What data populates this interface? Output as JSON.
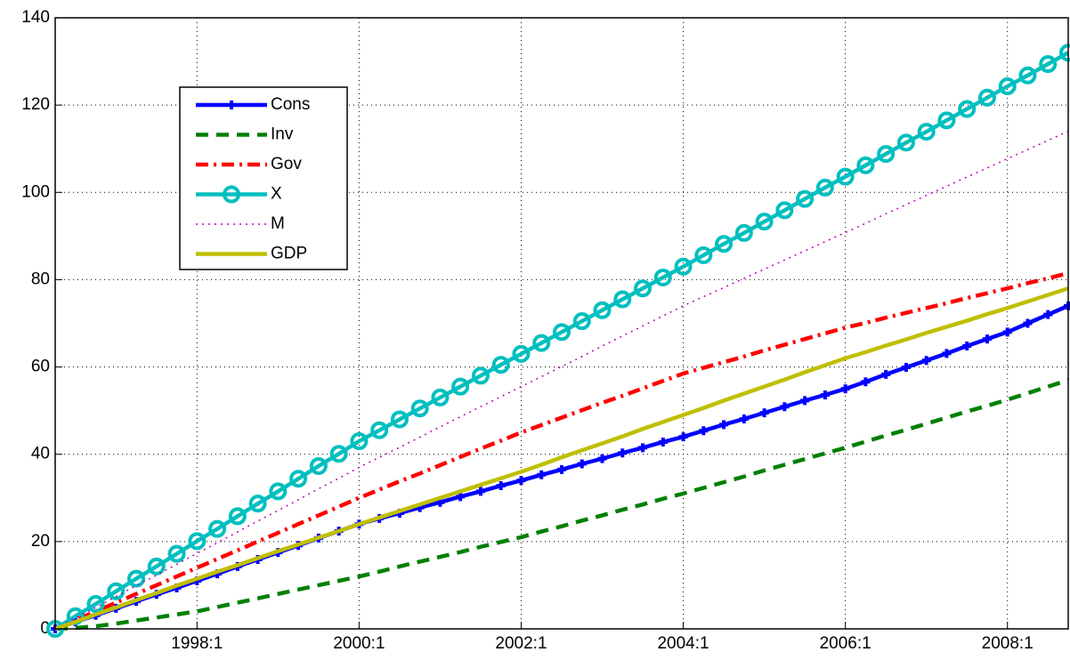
{
  "chart_data": {
    "type": "line",
    "categories": [
      null,
      null,
      null,
      null,
      null,
      null,
      null,
      "1998:1",
      null,
      null,
      null,
      null,
      null,
      null,
      null,
      "2000:1",
      null,
      null,
      null,
      null,
      null,
      null,
      null,
      "2002:1",
      null,
      null,
      null,
      null,
      null,
      null,
      null,
      "2004:1",
      null,
      null,
      null,
      null,
      null,
      null,
      null,
      "2006:1",
      null,
      null,
      null,
      null,
      null,
      null,
      null,
      "2008:1",
      null,
      null,
      null
    ],
    "ylim": [
      0,
      140
    ],
    "yticks": [
      0,
      20,
      40,
      60,
      80,
      100,
      120,
      140
    ],
    "grid": true,
    "legend": "upper left",
    "series": [
      {
        "name": "Cons",
        "color": "#0000ff",
        "style": "solid",
        "marker": "plus",
        "values": [
          0,
          1.6,
          3.1,
          4.7,
          6.3,
          7.9,
          9.4,
          11,
          12.6,
          14.3,
          15.9,
          17.5,
          19.1,
          20.8,
          22.4,
          24,
          25.3,
          26.5,
          27.8,
          29,
          30.3,
          31.5,
          32.8,
          34,
          35.3,
          36.5,
          37.8,
          39,
          40.3,
          41.5,
          42.8,
          44,
          45.4,
          46.8,
          48.1,
          49.5,
          50.9,
          52.3,
          53.6,
          55,
          56.6,
          58.3,
          59.9,
          61.5,
          63.1,
          64.8,
          66.4,
          68,
          70,
          72,
          74
        ]
      },
      {
        "name": "Inv",
        "color": "#008000",
        "style": "dash",
        "values": [
          0,
          0.2,
          0.6,
          1.2,
          1.9,
          2.6,
          3.3,
          4,
          5,
          6,
          7,
          8,
          9,
          10,
          11,
          12,
          13.1,
          14.3,
          15.4,
          16.5,
          17.6,
          18.8,
          19.9,
          21,
          22.3,
          23.5,
          24.8,
          26,
          27.3,
          28.5,
          29.8,
          31,
          32.3,
          33.6,
          34.9,
          36.3,
          37.6,
          38.9,
          40.2,
          41.5,
          42.9,
          44.3,
          45.6,
          47,
          48.4,
          49.8,
          51.1,
          52.5,
          54,
          55.5,
          57
        ]
      },
      {
        "name": "Gov",
        "color": "#ff0000",
        "style": "dashdot",
        "values": [
          0,
          2,
          4,
          6,
          8,
          10,
          12,
          14,
          16,
          18,
          20,
          22,
          24,
          26,
          28,
          30,
          31.9,
          33.8,
          35.6,
          37.5,
          39.4,
          41.3,
          43.1,
          45,
          46.7,
          48.4,
          50.1,
          51.8,
          53.4,
          55.1,
          56.8,
          58.5,
          59.8,
          61.1,
          62.4,
          63.8,
          65.1,
          66.4,
          67.7,
          69,
          70.1,
          71.3,
          72.4,
          73.5,
          74.6,
          75.8,
          76.9,
          78,
          79.2,
          80.3,
          81.5
        ]
      },
      {
        "name": "X",
        "color": "#00bfbf",
        "style": "solid",
        "marker": "circle",
        "values": [
          0,
          2.9,
          5.7,
          8.6,
          11.5,
          14.3,
          17.2,
          20.1,
          22.9,
          25.8,
          28.7,
          31.5,
          34.4,
          37.3,
          40.1,
          43,
          45.5,
          48,
          50.5,
          53,
          55.5,
          58,
          60.5,
          63,
          65.5,
          68,
          70.5,
          73,
          75.5,
          78,
          80.5,
          83,
          85.6,
          88.2,
          90.7,
          93.3,
          95.9,
          98.5,
          101.1,
          103.6,
          106.2,
          108.8,
          111.4,
          113.9,
          116.5,
          119.1,
          121.7,
          124.3,
          126.8,
          129.4,
          132
        ]
      },
      {
        "name": "M",
        "color": "#bf00bf",
        "style": "dot",
        "values": [
          0,
          2.5,
          4.9,
          7.4,
          9.9,
          12.3,
          14.8,
          17.3,
          19.7,
          22.2,
          24.7,
          27.1,
          29.6,
          32.1,
          34.5,
          37,
          39.3,
          41.6,
          43.9,
          46.3,
          48.6,
          50.9,
          53.2,
          55.5,
          57.8,
          60.1,
          62.4,
          64.8,
          67.1,
          69.4,
          71.7,
          74,
          76.1,
          78.2,
          80.3,
          82.4,
          84.5,
          86.6,
          88.7,
          90.8,
          92.9,
          95.1,
          97.2,
          99.3,
          101.4,
          103.5,
          105.6,
          107.7,
          109.8,
          111.9,
          114
        ]
      },
      {
        "name": "GDP",
        "color": "#bfbf00",
        "style": "solid",
        "values": [
          0,
          1.6,
          3.3,
          4.9,
          6.6,
          8.2,
          9.9,
          11.5,
          13.1,
          14.6,
          16.2,
          17.8,
          19.3,
          20.9,
          22.4,
          24,
          25.5,
          27,
          28.5,
          30,
          31.5,
          33,
          34.5,
          36,
          37.6,
          39.3,
          40.9,
          42.5,
          44.1,
          45.8,
          47.4,
          49,
          50.6,
          52.3,
          53.9,
          55.5,
          57.1,
          58.8,
          60.4,
          62,
          63.4,
          64.9,
          66.3,
          67.8,
          69.2,
          70.6,
          72.1,
          73.5,
          75,
          76.5,
          78
        ]
      }
    ]
  }
}
